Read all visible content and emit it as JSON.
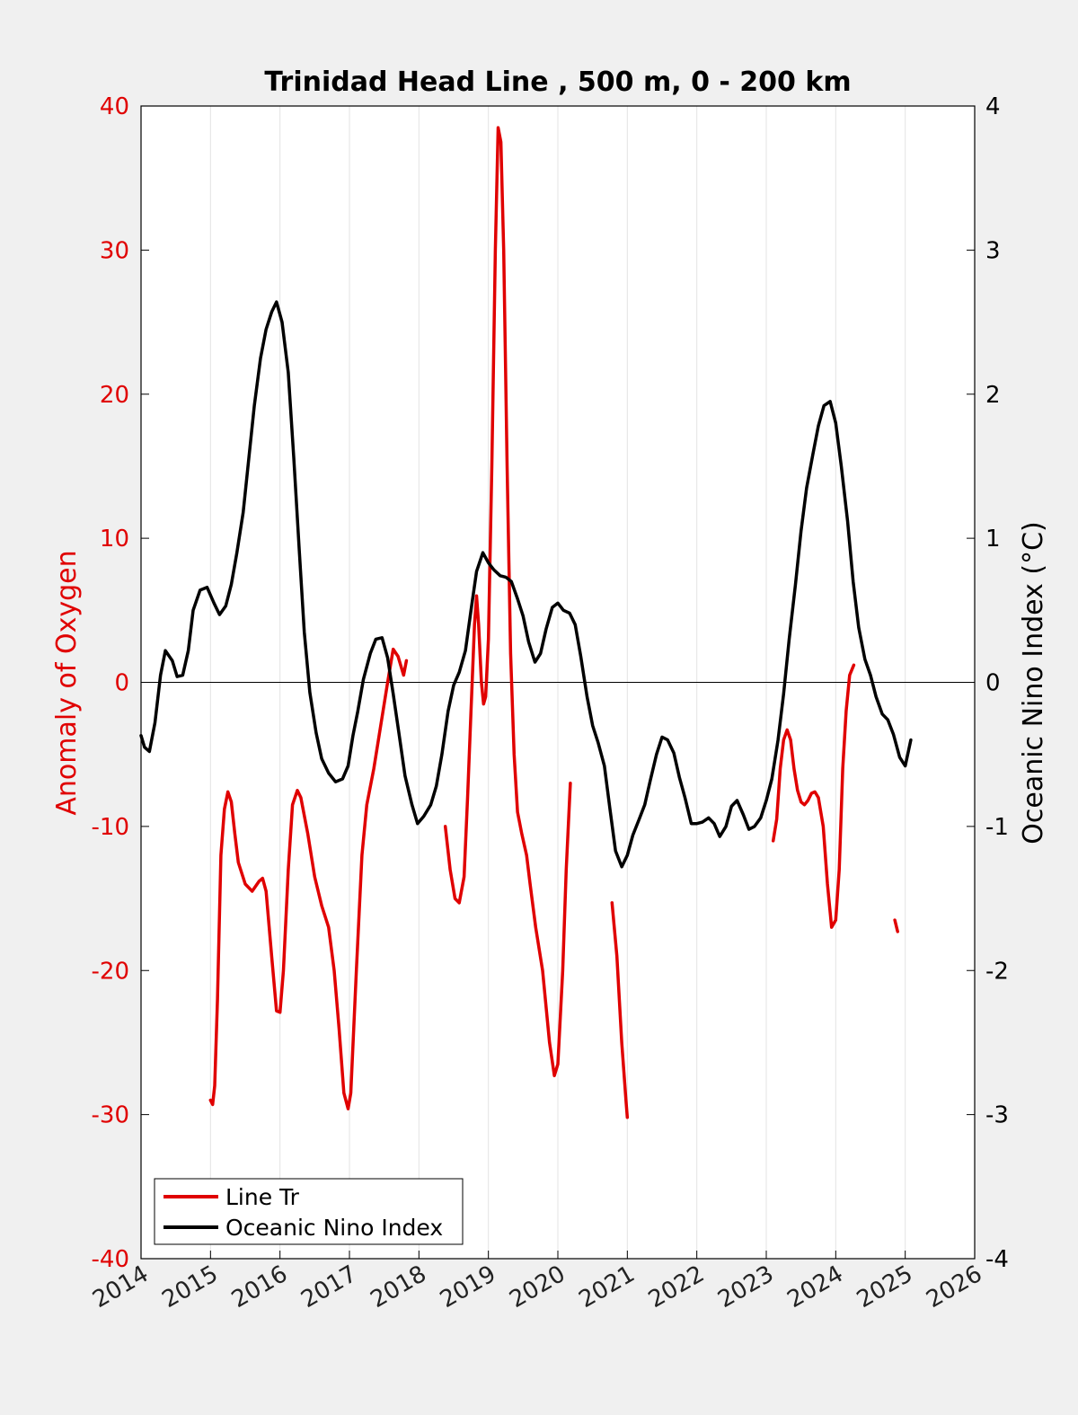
{
  "chart_data": {
    "type": "line",
    "title": "Trinidad Head Line , 500 m, 0 - 200 km",
    "xlabel": "",
    "ylabel_left": "Anomaly of Oxygen",
    "ylabel_right": "Oceanic Nino Index (°C)",
    "xlim": [
      2014,
      2026
    ],
    "ylim_left": [
      -40,
      40
    ],
    "ylim_right": [
      -4,
      4
    ],
    "x_ticks": [
      "2014",
      "2015",
      "2016",
      "2017",
      "2018",
      "2019",
      "2020",
      "2021",
      "2022",
      "2023",
      "2024",
      "2025",
      "2026"
    ],
    "y_ticks_left": [
      "-40",
      "-30",
      "-20",
      "-10",
      "0",
      "10",
      "20",
      "30",
      "40"
    ],
    "y_ticks_right": [
      "-4",
      "-3",
      "-2",
      "-1",
      "0",
      "1",
      "2",
      "3",
      "4"
    ],
    "grid": "vertical",
    "zero_line": true,
    "legend_position": "bottom-left",
    "colors": {
      "line_tr": "#e00000",
      "oni": "#000000",
      "left_axis": "#e00000",
      "right_axis": "#000000"
    },
    "series": [
      {
        "name": "Line Tr",
        "axis": "left",
        "segments": [
          [
            [
              2015.0,
              -29.0
            ],
            [
              2015.03,
              -29.3
            ],
            [
              2015.06,
              -28.0
            ],
            [
              2015.1,
              -22
            ],
            [
              2015.15,
              -12
            ],
            [
              2015.2,
              -8.8
            ],
            [
              2015.25,
              -7.6
            ],
            [
              2015.3,
              -8.3
            ],
            [
              2015.35,
              -10.5
            ],
            [
              2015.4,
              -12.5
            ],
            [
              2015.5,
              -14
            ],
            [
              2015.6,
              -14.5
            ],
            [
              2015.7,
              -13.8
            ],
            [
              2015.75,
              -13.6
            ],
            [
              2015.8,
              -14.5
            ],
            [
              2015.88,
              -19
            ],
            [
              2015.95,
              -22.8
            ],
            [
              2016.0,
              -22.9
            ],
            [
              2016.05,
              -20
            ],
            [
              2016.12,
              -13
            ],
            [
              2016.18,
              -8.5
            ],
            [
              2016.25,
              -7.5
            ],
            [
              2016.3,
              -8.0
            ],
            [
              2016.4,
              -10.5
            ],
            [
              2016.5,
              -13.5
            ],
            [
              2016.6,
              -15.5
            ],
            [
              2016.7,
              -17
            ],
            [
              2016.78,
              -20
            ],
            [
              2016.85,
              -24
            ],
            [
              2016.92,
              -28.5
            ],
            [
              2016.98,
              -29.6
            ],
            [
              2017.02,
              -28.5
            ],
            [
              2017.1,
              -20
            ],
            [
              2017.18,
              -12
            ],
            [
              2017.25,
              -8.5
            ],
            [
              2017.35,
              -6
            ],
            [
              2017.45,
              -3
            ],
            [
              2017.55,
              0
            ],
            [
              2017.63,
              2.3
            ],
            [
              2017.7,
              1.8
            ],
            [
              2017.78,
              0.5
            ],
            [
              2017.82,
              1.5
            ]
          ],
          [
            [
              2018.38,
              -10
            ],
            [
              2018.45,
              -13
            ],
            [
              2018.52,
              -15
            ],
            [
              2018.58,
              -15.3
            ],
            [
              2018.65,
              -13.5
            ],
            [
              2018.7,
              -8
            ],
            [
              2018.75,
              -2
            ],
            [
              2018.8,
              4
            ],
            [
              2018.83,
              6
            ],
            [
              2018.86,
              4
            ],
            [
              2018.9,
              0
            ],
            [
              2018.93,
              -1.5
            ],
            [
              2018.96,
              -1.0
            ],
            [
              2019.0,
              3
            ],
            [
              2019.05,
              15
            ],
            [
              2019.1,
              30
            ],
            [
              2019.14,
              38.5
            ],
            [
              2019.18,
              37.5
            ],
            [
              2019.22,
              30
            ],
            [
              2019.27,
              15
            ],
            [
              2019.32,
              2
            ],
            [
              2019.37,
              -5
            ],
            [
              2019.42,
              -9
            ],
            [
              2019.48,
              -10.5
            ],
            [
              2019.55,
              -12
            ],
            [
              2019.6,
              -14
            ],
            [
              2019.68,
              -17
            ],
            [
              2019.78,
              -20
            ],
            [
              2019.88,
              -25
            ],
            [
              2019.95,
              -27.3
            ],
            [
              2020.0,
              -26.5
            ],
            [
              2020.07,
              -20
            ],
            [
              2020.12,
              -13
            ],
            [
              2020.18,
              -7
            ]
          ],
          [
            [
              2020.78,
              -15.3
            ],
            [
              2020.85,
              -19
            ],
            [
              2020.92,
              -25
            ],
            [
              2020.98,
              -29
            ],
            [
              2021.0,
              -30.2
            ]
          ],
          [
            [
              2023.1,
              -11
            ],
            [
              2023.15,
              -9.5
            ],
            [
              2023.2,
              -6
            ],
            [
              2023.25,
              -4
            ],
            [
              2023.3,
              -3.3
            ],
            [
              2023.35,
              -4
            ],
            [
              2023.4,
              -6
            ],
            [
              2023.45,
              -7.5
            ],
            [
              2023.5,
              -8.3
            ],
            [
              2023.55,
              -8.5
            ],
            [
              2023.6,
              -8.2
            ],
            [
              2023.65,
              -7.7
            ],
            [
              2023.7,
              -7.6
            ],
            [
              2023.75,
              -8
            ],
            [
              2023.82,
              -10
            ],
            [
              2023.88,
              -14
            ],
            [
              2023.94,
              -17
            ],
            [
              2024.0,
              -16.5
            ],
            [
              2024.05,
              -13
            ],
            [
              2024.1,
              -6
            ],
            [
              2024.15,
              -2
            ],
            [
              2024.2,
              0.5
            ],
            [
              2024.26,
              1.2
            ]
          ],
          [
            [
              2024.85,
              -16.5
            ],
            [
              2024.89,
              -17.3
            ]
          ]
        ]
      },
      {
        "name": "Oceanic Nino Index",
        "axis": "right",
        "segments": [
          [
            [
              2014.0,
              -0.37
            ],
            [
              2014.05,
              -0.45
            ],
            [
              2014.12,
              -0.48
            ],
            [
              2014.2,
              -0.28
            ],
            [
              2014.28,
              0.05
            ],
            [
              2014.35,
              0.22
            ],
            [
              2014.45,
              0.15
            ],
            [
              2014.52,
              0.04
            ],
            [
              2014.6,
              0.05
            ],
            [
              2014.68,
              0.22
            ],
            [
              2014.75,
              0.5
            ],
            [
              2014.85,
              0.64
            ],
            [
              2014.95,
              0.66
            ],
            [
              2015.05,
              0.55
            ],
            [
              2015.13,
              0.47
            ],
            [
              2015.22,
              0.53
            ],
            [
              2015.3,
              0.68
            ],
            [
              2015.38,
              0.9
            ],
            [
              2015.47,
              1.18
            ],
            [
              2015.55,
              1.55
            ],
            [
              2015.63,
              1.92
            ],
            [
              2015.72,
              2.25
            ],
            [
              2015.8,
              2.45
            ],
            [
              2015.88,
              2.57
            ],
            [
              2015.95,
              2.64
            ],
            [
              2016.03,
              2.5
            ],
            [
              2016.12,
              2.15
            ],
            [
              2016.2,
              1.55
            ],
            [
              2016.28,
              0.9
            ],
            [
              2016.35,
              0.35
            ],
            [
              2016.43,
              -0.07
            ],
            [
              2016.52,
              -0.35
            ],
            [
              2016.6,
              -0.53
            ],
            [
              2016.7,
              -0.63
            ],
            [
              2016.8,
              -0.69
            ],
            [
              2016.9,
              -0.67
            ],
            [
              2016.98,
              -0.58
            ],
            [
              2017.05,
              -0.37
            ],
            [
              2017.12,
              -0.2
            ],
            [
              2017.2,
              0.02
            ],
            [
              2017.3,
              0.2
            ],
            [
              2017.38,
              0.3
            ],
            [
              2017.47,
              0.31
            ],
            [
              2017.55,
              0.17
            ],
            [
              2017.63,
              -0.08
            ],
            [
              2017.72,
              -0.38
            ],
            [
              2017.8,
              -0.65
            ],
            [
              2017.9,
              -0.85
            ],
            [
              2017.98,
              -0.98
            ],
            [
              2018.07,
              -0.93
            ],
            [
              2018.17,
              -0.85
            ],
            [
              2018.25,
              -0.72
            ],
            [
              2018.33,
              -0.5
            ],
            [
              2018.42,
              -0.2
            ],
            [
              2018.5,
              -0.02
            ],
            [
              2018.58,
              0.07
            ],
            [
              2018.67,
              0.22
            ],
            [
              2018.75,
              0.5
            ],
            [
              2018.83,
              0.77
            ],
            [
              2018.92,
              0.9
            ],
            [
              2019.0,
              0.83
            ],
            [
              2019.08,
              0.78
            ],
            [
              2019.17,
              0.74
            ],
            [
              2019.25,
              0.73
            ],
            [
              2019.33,
              0.7
            ],
            [
              2019.42,
              0.58
            ],
            [
              2019.5,
              0.46
            ],
            [
              2019.58,
              0.28
            ],
            [
              2019.67,
              0.14
            ],
            [
              2019.75,
              0.2
            ],
            [
              2019.83,
              0.37
            ],
            [
              2019.92,
              0.52
            ],
            [
              2020.0,
              0.55
            ],
            [
              2020.08,
              0.5
            ],
            [
              2020.17,
              0.48
            ],
            [
              2020.25,
              0.4
            ],
            [
              2020.33,
              0.18
            ],
            [
              2020.42,
              -0.1
            ],
            [
              2020.5,
              -0.3
            ],
            [
              2020.58,
              -0.42
            ],
            [
              2020.67,
              -0.58
            ],
            [
              2020.75,
              -0.88
            ],
            [
              2020.83,
              -1.17
            ],
            [
              2020.92,
              -1.28
            ],
            [
              2021.0,
              -1.2
            ],
            [
              2021.08,
              -1.06
            ],
            [
              2021.17,
              -0.95
            ],
            [
              2021.25,
              -0.85
            ],
            [
              2021.33,
              -0.68
            ],
            [
              2021.42,
              -0.5
            ],
            [
              2021.5,
              -0.38
            ],
            [
              2021.58,
              -0.4
            ],
            [
              2021.67,
              -0.49
            ],
            [
              2021.75,
              -0.66
            ],
            [
              2021.83,
              -0.8
            ],
            [
              2021.92,
              -0.98
            ],
            [
              2022.0,
              -0.98
            ],
            [
              2022.08,
              -0.97
            ],
            [
              2022.17,
              -0.94
            ],
            [
              2022.25,
              -0.98
            ],
            [
              2022.33,
              -1.07
            ],
            [
              2022.42,
              -1.0
            ],
            [
              2022.5,
              -0.86
            ],
            [
              2022.58,
              -0.82
            ],
            [
              2022.67,
              -0.92
            ],
            [
              2022.75,
              -1.02
            ],
            [
              2022.83,
              -1.0
            ],
            [
              2022.92,
              -0.94
            ],
            [
              2023.0,
              -0.82
            ],
            [
              2023.08,
              -0.67
            ],
            [
              2023.17,
              -0.4
            ],
            [
              2023.25,
              -0.08
            ],
            [
              2023.33,
              0.3
            ],
            [
              2023.42,
              0.68
            ],
            [
              2023.5,
              1.05
            ],
            [
              2023.58,
              1.35
            ],
            [
              2023.67,
              1.58
            ],
            [
              2023.75,
              1.78
            ],
            [
              2023.83,
              1.92
            ],
            [
              2023.92,
              1.95
            ],
            [
              2024.0,
              1.8
            ],
            [
              2024.08,
              1.5
            ],
            [
              2024.17,
              1.12
            ],
            [
              2024.25,
              0.7
            ],
            [
              2024.33,
              0.38
            ],
            [
              2024.42,
              0.16
            ],
            [
              2024.5,
              0.05
            ],
            [
              2024.58,
              -0.1
            ],
            [
              2024.67,
              -0.22
            ],
            [
              2024.75,
              -0.26
            ],
            [
              2024.83,
              -0.36
            ],
            [
              2024.92,
              -0.52
            ],
            [
              2025.0,
              -0.58
            ],
            [
              2025.08,
              -0.4
            ]
          ]
        ]
      }
    ]
  }
}
